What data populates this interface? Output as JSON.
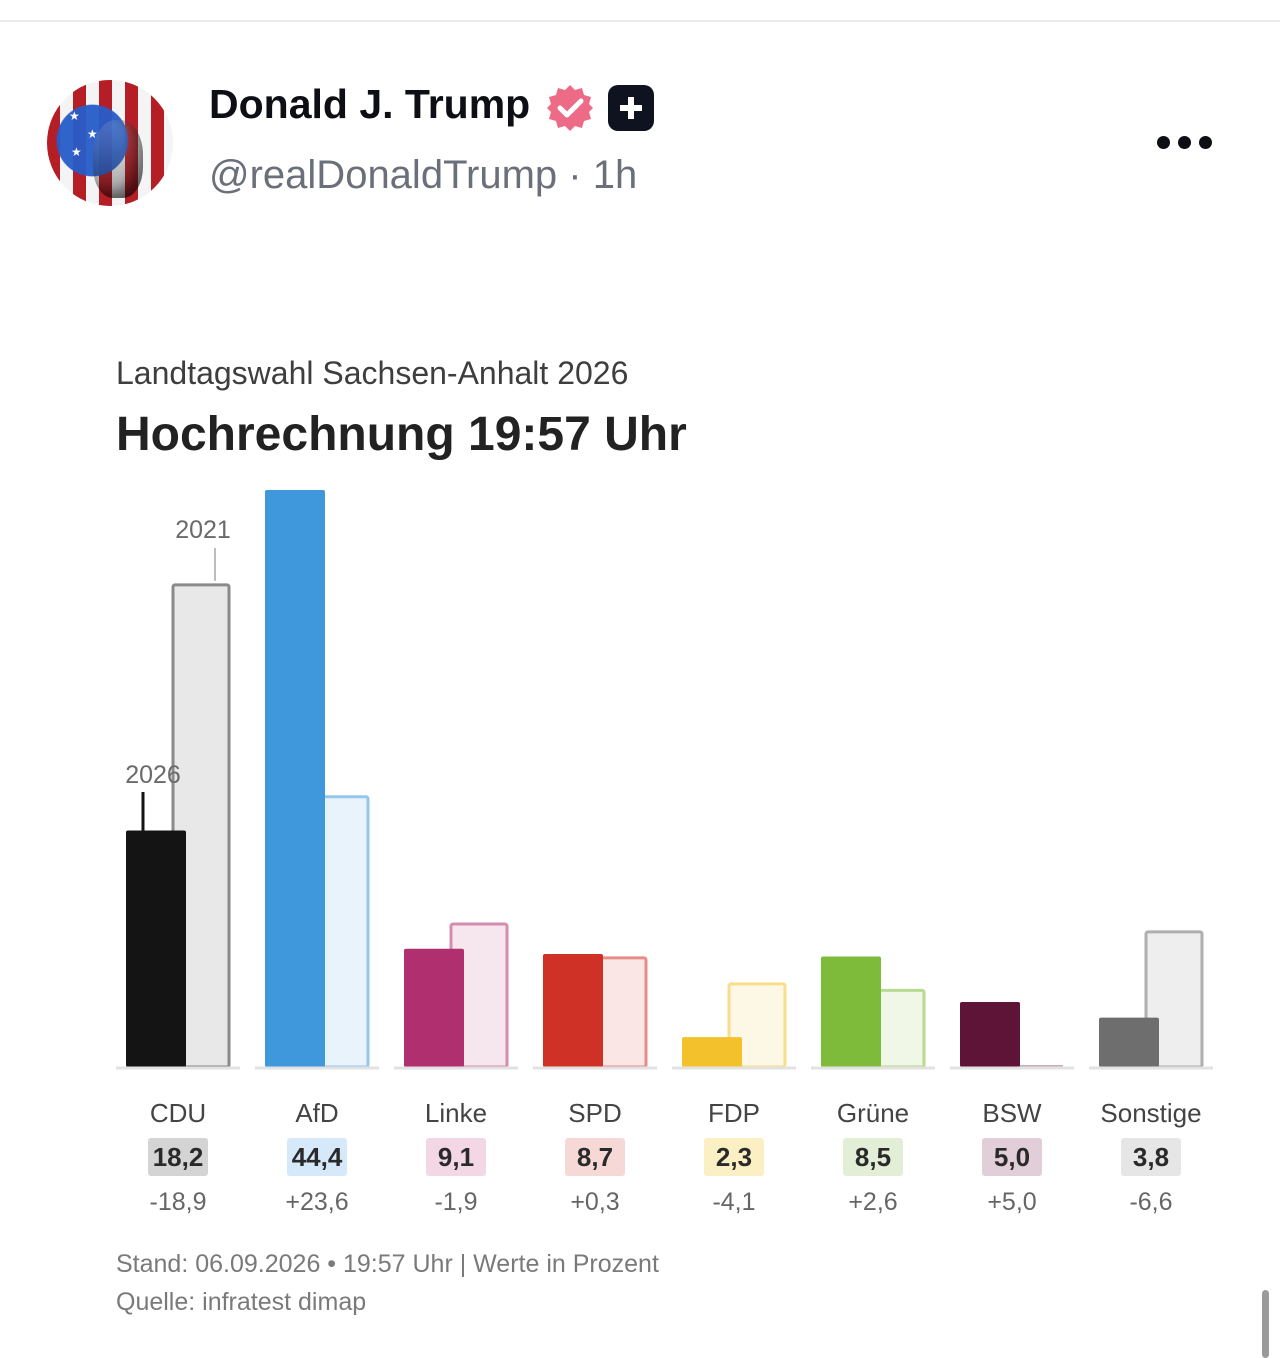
{
  "post": {
    "author_name": "Donald J. Trump",
    "handle": "@realDonaldTrump",
    "time": "1h",
    "separator": "·"
  },
  "icons": {
    "verified": "verified-check-badge",
    "plus": "plus-badge",
    "more": "more-options-icon",
    "avatar": "user-avatar"
  },
  "chart_data": {
    "type": "bar",
    "subtitle": "Landtagswahl Sachsen-Anhalt 2026",
    "title": "Hochrechnung 19:57 Uhr",
    "series_labels": {
      "current": "2026",
      "previous": "2021"
    },
    "categories": [
      "CDU",
      "AfD",
      "Linke",
      "SPD",
      "FDP",
      "Grüne",
      "BSW",
      "Sonstige"
    ],
    "values_2026": [
      18.2,
      44.4,
      9.1,
      8.7,
      2.3,
      8.5,
      5.0,
      3.8
    ],
    "values_2021": [
      37.1,
      20.8,
      11.0,
      8.4,
      6.4,
      5.9,
      0,
      10.4
    ],
    "value_labels": [
      "18,2",
      "44,4",
      "9,1",
      "8,7",
      "2,3",
      "8,5",
      "5,0",
      "3,8"
    ],
    "change_labels": [
      "-18,9",
      "+23,6",
      "-1,9",
      "+0,3",
      "-4,1",
      "+2,6",
      "+5,0",
      "-6,6"
    ],
    "colors": [
      "#141414",
      "#3f97dc",
      "#b02f6f",
      "#cf3126",
      "#f2c12c",
      "#7fbb3a",
      "#5e1437",
      "#6e6e6e"
    ],
    "value_badge_colors": [
      "#d4d4d4",
      "#d6e9fa",
      "#f3d7e4",
      "#f6d8d6",
      "#fbefc4",
      "#e2efd6",
      "#e2ced8",
      "#e6e6e6"
    ],
    "ylim": [
      0,
      45
    ]
  },
  "footer": {
    "stand": "Stand: 06.09.2026 • 19:57 Uhr | Werte in Prozent",
    "source": "Quelle: infratest dimap"
  }
}
